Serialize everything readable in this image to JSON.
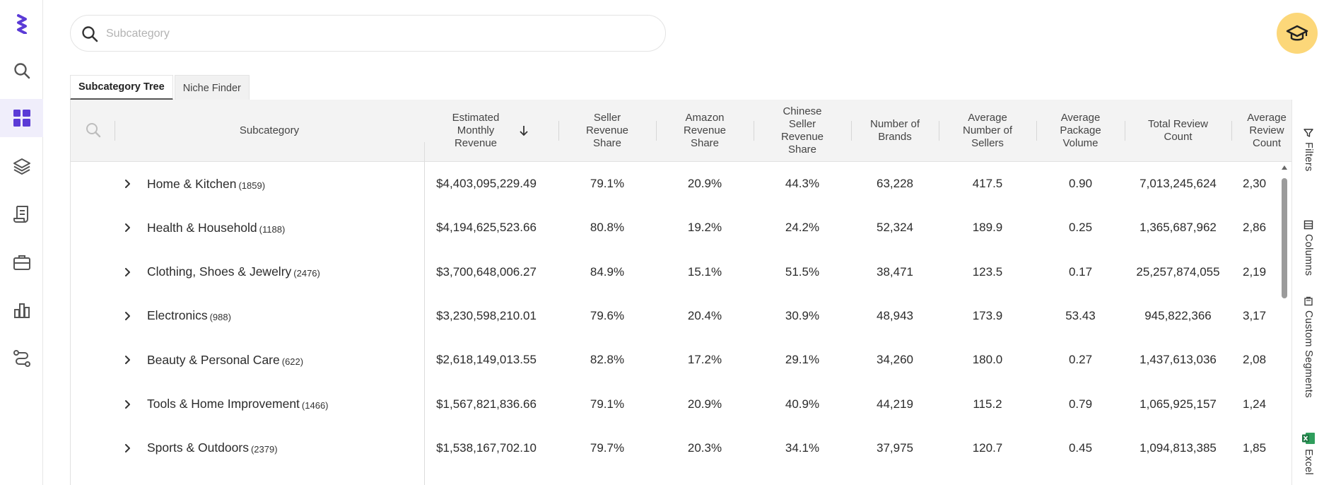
{
  "search": {
    "placeholder": "Subcategory"
  },
  "nav": {
    "items": [
      {
        "icon": "logo-icon"
      },
      {
        "icon": "search-icon"
      },
      {
        "icon": "dashboard-icon",
        "active": true
      },
      {
        "icon": "layers-icon"
      },
      {
        "icon": "document-icon"
      },
      {
        "icon": "briefcase-icon"
      },
      {
        "icon": "bar-chart-icon"
      },
      {
        "icon": "route-icon"
      }
    ]
  },
  "tabs": [
    {
      "label": "Subcategory Tree",
      "active": true
    },
    {
      "label": "Niche Finder",
      "active": false
    }
  ],
  "grid": {
    "columns": {
      "subcategory": "Subcategory",
      "revenue": "Estimated Monthly Revenue",
      "seller_share": "Seller Revenue Share",
      "amazon_share": "Amazon Revenue Share",
      "chinese_share": "Chinese Seller Revenue Share",
      "brands": "Number of Brands",
      "sellers": "Average Number of Sellers",
      "package": "Average Package Volume",
      "reviews": "Total Review Count",
      "avg_reviews": "Average Review Count"
    },
    "sort": {
      "column": "revenue",
      "direction": "descending"
    },
    "rows": [
      {
        "name": "Home & Kitchen",
        "count": "(1859)",
        "revenue": "$4,403,095,229.49",
        "seller_share": "79.1%",
        "amazon_share": "20.9%",
        "chinese_share": "44.3%",
        "brands": "63,228",
        "sellers": "417.5",
        "package": "0.90",
        "reviews": "7,013,245,624",
        "avg_reviews": "2,30"
      },
      {
        "name": "Health & Household",
        "count": "(1188)",
        "revenue": "$4,194,625,523.66",
        "seller_share": "80.8%",
        "amazon_share": "19.2%",
        "chinese_share": "24.2%",
        "brands": "52,324",
        "sellers": "189.9",
        "package": "0.25",
        "reviews": "1,365,687,962",
        "avg_reviews": "2,86"
      },
      {
        "name": "Clothing, Shoes & Jewelry",
        "count": "(2476)",
        "revenue": "$3,700,648,006.27",
        "seller_share": "84.9%",
        "amazon_share": "15.1%",
        "chinese_share": "51.5%",
        "brands": "38,471",
        "sellers": "123.5",
        "package": "0.17",
        "reviews": "25,257,874,055",
        "avg_reviews": "2,19"
      },
      {
        "name": "Electronics",
        "count": "(988)",
        "revenue": "$3,230,598,210.01",
        "seller_share": "79.6%",
        "amazon_share": "20.4%",
        "chinese_share": "30.9%",
        "brands": "48,943",
        "sellers": "173.9",
        "package": "53.43",
        "reviews": "945,822,366",
        "avg_reviews": "3,17"
      },
      {
        "name": "Beauty & Personal Care",
        "count": "(622)",
        "revenue": "$2,618,149,013.55",
        "seller_share": "82.8%",
        "amazon_share": "17.2%",
        "chinese_share": "29.1%",
        "brands": "34,260",
        "sellers": "180.0",
        "package": "0.27",
        "reviews": "1,437,613,036",
        "avg_reviews": "2,08"
      },
      {
        "name": "Tools & Home Improvement",
        "count": "(1466)",
        "revenue": "$1,567,821,836.66",
        "seller_share": "79.1%",
        "amazon_share": "20.9%",
        "chinese_share": "40.9%",
        "brands": "44,219",
        "sellers": "115.2",
        "package": "0.79",
        "reviews": "1,065,925,157",
        "avg_reviews": "1,24"
      },
      {
        "name": "Sports & Outdoors",
        "count": "(2379)",
        "revenue": "$1,538,167,702.10",
        "seller_share": "79.7%",
        "amazon_share": "20.3%",
        "chinese_share": "34.1%",
        "brands": "37,975",
        "sellers": "120.7",
        "package": "0.45",
        "reviews": "1,094,813,385",
        "avg_reviews": "1,85"
      }
    ]
  },
  "sidepanel": {
    "filters": "Filters",
    "columns": "Columns",
    "custom_segments": "Custom Segments",
    "excel": "Excel"
  },
  "colors": {
    "accent": "#5b3bd6",
    "nav_active_bg": "#f0eefb",
    "grad_button": "#fcd779",
    "excel_green": "#1f7a45"
  }
}
